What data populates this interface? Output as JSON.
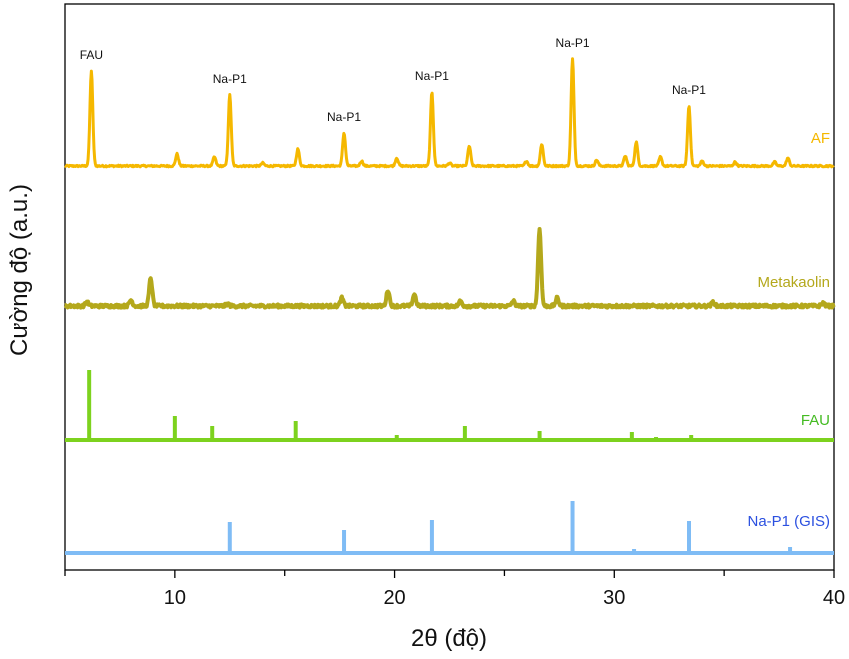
{
  "chart_data": {
    "type": "line",
    "xlabel": "2θ (độ)",
    "ylabel": "Cường độ (a.u.)",
    "xlim": [
      5,
      40
    ],
    "x_ticks": [
      10,
      20,
      30,
      40
    ],
    "x_tick_labels": [
      "10",
      "20",
      "30",
      "40"
    ],
    "grid": false,
    "y_ticks_shown": false,
    "colors": {
      "AF": "#f5b800",
      "Metakaolin": "#b4a81c",
      "FAU": "#7dd21e",
      "Na-P1 (GIS)": "#7fbcf5",
      "Na-P1 (GIS) label": "#2b50e0",
      "FAU label": "#44bb22"
    },
    "series": [
      {
        "name": "AF",
        "kind": "pattern",
        "baseline": 0,
        "peaks": [
          {
            "x": 6.2,
            "y": 95
          },
          {
            "x": 10.1,
            "y": 12
          },
          {
            "x": 11.8,
            "y": 9
          },
          {
            "x": 12.5,
            "y": 71
          },
          {
            "x": 14.0,
            "y": 3
          },
          {
            "x": 15.6,
            "y": 17
          },
          {
            "x": 17.7,
            "y": 33
          },
          {
            "x": 18.5,
            "y": 5
          },
          {
            "x": 20.1,
            "y": 8
          },
          {
            "x": 21.7,
            "y": 74
          },
          {
            "x": 22.5,
            "y": 3
          },
          {
            "x": 23.4,
            "y": 20
          },
          {
            "x": 26.0,
            "y": 5
          },
          {
            "x": 26.7,
            "y": 22
          },
          {
            "x": 28.1,
            "y": 107
          },
          {
            "x": 29.2,
            "y": 6
          },
          {
            "x": 30.5,
            "y": 10
          },
          {
            "x": 31.0,
            "y": 24
          },
          {
            "x": 32.1,
            "y": 9
          },
          {
            "x": 33.4,
            "y": 60
          },
          {
            "x": 34.0,
            "y": 5
          },
          {
            "x": 35.5,
            "y": 4
          },
          {
            "x": 37.3,
            "y": 4
          },
          {
            "x": 37.9,
            "y": 8
          }
        ],
        "label": "AF"
      },
      {
        "name": "Metakaolin",
        "kind": "pattern",
        "baseline": 0,
        "peaks": [
          {
            "x": 6.0,
            "y": 4
          },
          {
            "x": 8.0,
            "y": 6
          },
          {
            "x": 8.9,
            "y": 28
          },
          {
            "x": 12.4,
            "y": 2
          },
          {
            "x": 17.6,
            "y": 8
          },
          {
            "x": 19.7,
            "y": 16
          },
          {
            "x": 20.9,
            "y": 12
          },
          {
            "x": 23.0,
            "y": 5
          },
          {
            "x": 25.4,
            "y": 5
          },
          {
            "x": 26.6,
            "y": 77
          },
          {
            "x": 27.4,
            "y": 8
          },
          {
            "x": 34.5,
            "y": 4
          },
          {
            "x": 39.5,
            "y": 3
          }
        ],
        "label": "Metakaolin"
      },
      {
        "name": "FAU",
        "kind": "sticks",
        "peaks": [
          {
            "x": 6.1,
            "y": 70
          },
          {
            "x": 10.0,
            "y": 24
          },
          {
            "x": 11.7,
            "y": 14
          },
          {
            "x": 15.5,
            "y": 19
          },
          {
            "x": 20.1,
            "y": 5
          },
          {
            "x": 23.2,
            "y": 14
          },
          {
            "x": 26.6,
            "y": 9
          },
          {
            "x": 30.8,
            "y": 8
          },
          {
            "x": 31.9,
            "y": 3
          },
          {
            "x": 33.5,
            "y": 5
          },
          {
            "x": 34.1,
            "y": 2
          }
        ],
        "label": "FAU"
      },
      {
        "name": "Na-P1 (GIS)",
        "kind": "sticks",
        "peaks": [
          {
            "x": 12.5,
            "y": 31
          },
          {
            "x": 17.7,
            "y": 23
          },
          {
            "x": 21.7,
            "y": 33
          },
          {
            "x": 28.1,
            "y": 52
          },
          {
            "x": 30.9,
            "y": 4
          },
          {
            "x": 33.4,
            "y": 32
          },
          {
            "x": 38.0,
            "y": 6
          }
        ],
        "label": "Na-P1 (GIS)"
      }
    ],
    "annotations": [
      {
        "text": "FAU",
        "x": 6.2
      },
      {
        "text": "Na-P1",
        "x": 12.5
      },
      {
        "text": "Na-P1",
        "x": 17.7
      },
      {
        "text": "Na-P1",
        "x": 21.7
      },
      {
        "text": "Na-P1",
        "x": 28.1
      },
      {
        "text": "Na-P1",
        "x": 33.4
      }
    ]
  }
}
